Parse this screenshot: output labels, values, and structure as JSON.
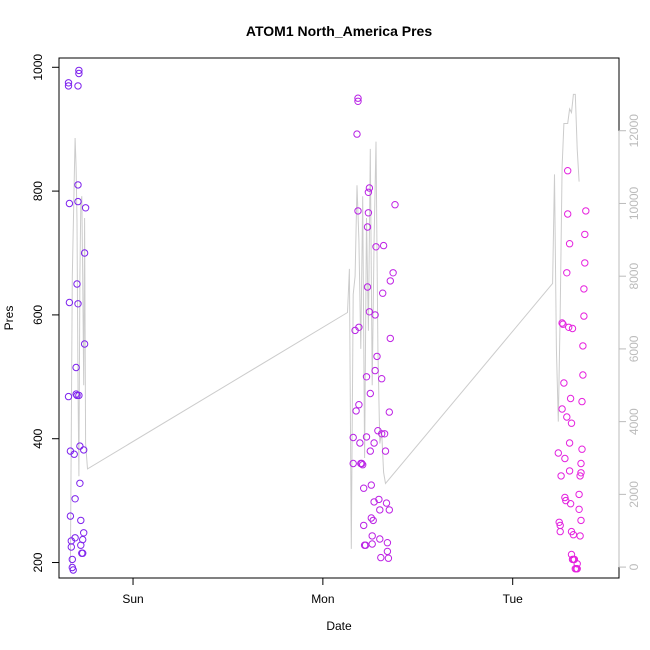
{
  "chart_data": {
    "type": "scatter",
    "title": "ATOM1 North_America Pres",
    "xlabel": "Date",
    "ylabel": "Pres",
    "x_ticks": [
      "Sun",
      "Mon",
      "Tue"
    ],
    "y_ticks": [
      "200",
      "400",
      "600",
      "800",
      "1000"
    ],
    "y_right_ticks": [
      "0",
      "2000",
      "4000",
      "6000",
      "8000",
      "10000",
      "12000"
    ],
    "ylim": [
      175,
      1015
    ],
    "y_right_lim": [
      -300,
      14000
    ],
    "x_range_days": [
      0.0,
      2.95
    ],
    "colors": {
      "point_start": "#7a22ee",
      "point_end": "#ee22dd",
      "right_line": "#cccccc",
      "right_axis_text": "#bbbbbb"
    },
    "points": [
      {
        "x": 0.05,
        "y": 975
      },
      {
        "x": 0.05,
        "y": 970
      },
      {
        "x": 0.055,
        "y": 780
      },
      {
        "x": 0.055,
        "y": 620
      },
      {
        "x": 0.05,
        "y": 468
      },
      {
        "x": 0.06,
        "y": 380
      },
      {
        "x": 0.06,
        "y": 275
      },
      {
        "x": 0.065,
        "y": 235
      },
      {
        "x": 0.065,
        "y": 225
      },
      {
        "x": 0.07,
        "y": 205
      },
      {
        "x": 0.07,
        "y": 192
      },
      {
        "x": 0.075,
        "y": 188
      },
      {
        "x": 0.08,
        "y": 375
      },
      {
        "x": 0.085,
        "y": 303
      },
      {
        "x": 0.085,
        "y": 240
      },
      {
        "x": 0.09,
        "y": 515
      },
      {
        "x": 0.09,
        "y": 472
      },
      {
        "x": 0.095,
        "y": 470
      },
      {
        "x": 0.095,
        "y": 650
      },
      {
        "x": 0.1,
        "y": 810
      },
      {
        "x": 0.1,
        "y": 970
      },
      {
        "x": 0.105,
        "y": 995
      },
      {
        "x": 0.105,
        "y": 990
      },
      {
        "x": 0.1,
        "y": 783
      },
      {
        "x": 0.1,
        "y": 618
      },
      {
        "x": 0.105,
        "y": 470
      },
      {
        "x": 0.11,
        "y": 388
      },
      {
        "x": 0.11,
        "y": 328
      },
      {
        "x": 0.115,
        "y": 268
      },
      {
        "x": 0.115,
        "y": 228
      },
      {
        "x": 0.12,
        "y": 215
      },
      {
        "x": 0.125,
        "y": 215
      },
      {
        "x": 0.125,
        "y": 237
      },
      {
        "x": 0.13,
        "y": 248
      },
      {
        "x": 0.13,
        "y": 382
      },
      {
        "x": 0.135,
        "y": 553
      },
      {
        "x": 0.135,
        "y": 700
      },
      {
        "x": 0.14,
        "y": 773
      },
      {
        "x": 1.55,
        "y": 402
      },
      {
        "x": 1.55,
        "y": 360
      },
      {
        "x": 1.56,
        "y": 575
      },
      {
        "x": 1.565,
        "y": 445
      },
      {
        "x": 1.57,
        "y": 892
      },
      {
        "x": 1.575,
        "y": 950
      },
      {
        "x": 1.575,
        "y": 945
      },
      {
        "x": 1.575,
        "y": 768
      },
      {
        "x": 1.58,
        "y": 580
      },
      {
        "x": 1.58,
        "y": 455
      },
      {
        "x": 1.585,
        "y": 393
      },
      {
        "x": 1.59,
        "y": 360
      },
      {
        "x": 1.595,
        "y": 360
      },
      {
        "x": 1.6,
        "y": 358
      },
      {
        "x": 1.605,
        "y": 320
      },
      {
        "x": 1.605,
        "y": 260
      },
      {
        "x": 1.61,
        "y": 228
      },
      {
        "x": 1.615,
        "y": 228
      },
      {
        "x": 1.62,
        "y": 403
      },
      {
        "x": 1.62,
        "y": 500
      },
      {
        "x": 1.625,
        "y": 645
      },
      {
        "x": 1.625,
        "y": 742
      },
      {
        "x": 1.63,
        "y": 765
      },
      {
        "x": 1.63,
        "y": 798
      },
      {
        "x": 1.635,
        "y": 805
      },
      {
        "x": 1.635,
        "y": 605
      },
      {
        "x": 1.64,
        "y": 473
      },
      {
        "x": 1.64,
        "y": 380
      },
      {
        "x": 1.645,
        "y": 325
      },
      {
        "x": 1.645,
        "y": 272
      },
      {
        "x": 1.65,
        "y": 243
      },
      {
        "x": 1.65,
        "y": 230
      },
      {
        "x": 1.655,
        "y": 268
      },
      {
        "x": 1.66,
        "y": 298
      },
      {
        "x": 1.66,
        "y": 393
      },
      {
        "x": 1.665,
        "y": 510
      },
      {
        "x": 1.665,
        "y": 600
      },
      {
        "x": 1.67,
        "y": 710
      },
      {
        "x": 1.675,
        "y": 533
      },
      {
        "x": 1.68,
        "y": 413
      },
      {
        "x": 1.685,
        "y": 302
      },
      {
        "x": 1.69,
        "y": 285
      },
      {
        "x": 1.69,
        "y": 238
      },
      {
        "x": 1.695,
        "y": 208
      },
      {
        "x": 1.7,
        "y": 408
      },
      {
        "x": 1.7,
        "y": 497
      },
      {
        "x": 1.705,
        "y": 635
      },
      {
        "x": 1.71,
        "y": 712
      },
      {
        "x": 1.715,
        "y": 408
      },
      {
        "x": 1.72,
        "y": 380
      },
      {
        "x": 1.725,
        "y": 296
      },
      {
        "x": 1.73,
        "y": 232
      },
      {
        "x": 1.73,
        "y": 218
      },
      {
        "x": 1.735,
        "y": 207
      },
      {
        "x": 1.74,
        "y": 285
      },
      {
        "x": 1.74,
        "y": 443
      },
      {
        "x": 1.745,
        "y": 562
      },
      {
        "x": 1.745,
        "y": 655
      },
      {
        "x": 1.76,
        "y": 668
      },
      {
        "x": 1.77,
        "y": 778
      },
      {
        "x": 2.63,
        "y": 377
      },
      {
        "x": 2.635,
        "y": 265
      },
      {
        "x": 2.64,
        "y": 260
      },
      {
        "x": 2.64,
        "y": 250
      },
      {
        "x": 2.645,
        "y": 340
      },
      {
        "x": 2.65,
        "y": 448
      },
      {
        "x": 2.65,
        "y": 587
      },
      {
        "x": 2.655,
        "y": 585
      },
      {
        "x": 2.66,
        "y": 490
      },
      {
        "x": 2.665,
        "y": 368
      },
      {
        "x": 2.665,
        "y": 305
      },
      {
        "x": 2.67,
        "y": 300
      },
      {
        "x": 2.675,
        "y": 435
      },
      {
        "x": 2.675,
        "y": 668
      },
      {
        "x": 2.68,
        "y": 763
      },
      {
        "x": 2.68,
        "y": 833
      },
      {
        "x": 2.685,
        "y": 580
      },
      {
        "x": 2.69,
        "y": 393
      },
      {
        "x": 2.69,
        "y": 348
      },
      {
        "x": 2.695,
        "y": 295
      },
      {
        "x": 2.7,
        "y": 250
      },
      {
        "x": 2.7,
        "y": 213
      },
      {
        "x": 2.705,
        "y": 205
      },
      {
        "x": 2.71,
        "y": 205
      },
      {
        "x": 2.715,
        "y": 205
      },
      {
        "x": 2.72,
        "y": 190
      },
      {
        "x": 2.725,
        "y": 190
      },
      {
        "x": 2.73,
        "y": 190
      },
      {
        "x": 2.69,
        "y": 715
      },
      {
        "x": 2.695,
        "y": 465
      },
      {
        "x": 2.7,
        "y": 425
      },
      {
        "x": 2.705,
        "y": 578
      },
      {
        "x": 2.71,
        "y": 245
      },
      {
        "x": 2.73,
        "y": 198
      },
      {
        "x": 2.74,
        "y": 286
      },
      {
        "x": 2.74,
        "y": 310
      },
      {
        "x": 2.745,
        "y": 340
      },
      {
        "x": 2.75,
        "y": 345
      },
      {
        "x": 2.75,
        "y": 360
      },
      {
        "x": 2.755,
        "y": 383
      },
      {
        "x": 2.755,
        "y": 460
      },
      {
        "x": 2.76,
        "y": 503
      },
      {
        "x": 2.76,
        "y": 550
      },
      {
        "x": 2.765,
        "y": 598
      },
      {
        "x": 2.765,
        "y": 642
      },
      {
        "x": 2.77,
        "y": 684
      },
      {
        "x": 2.77,
        "y": 730
      },
      {
        "x": 2.775,
        "y": 768
      },
      {
        "x": 2.745,
        "y": 243
      },
      {
        "x": 2.75,
        "y": 268
      }
    ],
    "right_series": [
      {
        "x": 0.06,
        "y": 0
      },
      {
        "x": 0.07,
        "y": 8000
      },
      {
        "x": 0.08,
        "y": 10600
      },
      {
        "x": 0.085,
        "y": 11800
      },
      {
        "x": 0.09,
        "y": 11000
      },
      {
        "x": 0.095,
        "y": 9500
      },
      {
        "x": 0.1,
        "y": 5000
      },
      {
        "x": 0.105,
        "y": 2500
      },
      {
        "x": 0.11,
        "y": 8000
      },
      {
        "x": 0.115,
        "y": 10000
      },
      {
        "x": 0.12,
        "y": 10200
      },
      {
        "x": 0.125,
        "y": 8000
      },
      {
        "x": 0.13,
        "y": 5000
      },
      {
        "x": 0.135,
        "y": 9600
      },
      {
        "x": 0.14,
        "y": 3400
      },
      {
        "x": 0.15,
        "y": 2700
      },
      {
        "x": 1.52,
        "y": 7000
      },
      {
        "x": 1.53,
        "y": 8200
      },
      {
        "x": 1.54,
        "y": 500
      },
      {
        "x": 1.55,
        "y": 7500
      },
      {
        "x": 1.56,
        "y": 8000
      },
      {
        "x": 1.57,
        "y": 10500
      },
      {
        "x": 1.58,
        "y": 9000
      },
      {
        "x": 1.59,
        "y": 6000
      },
      {
        "x": 1.6,
        "y": 10200
      },
      {
        "x": 1.61,
        "y": 3000
      },
      {
        "x": 1.62,
        "y": 9600
      },
      {
        "x": 1.63,
        "y": 6500
      },
      {
        "x": 1.64,
        "y": 11500
      },
      {
        "x": 1.65,
        "y": 5000
      },
      {
        "x": 1.66,
        "y": 9000
      },
      {
        "x": 1.67,
        "y": 11700
      },
      {
        "x": 1.68,
        "y": 6000
      },
      {
        "x": 1.69,
        "y": 3400
      },
      {
        "x": 1.7,
        "y": 3700
      },
      {
        "x": 1.71,
        "y": 2600
      },
      {
        "x": 1.72,
        "y": 2300
      },
      {
        "x": 2.6,
        "y": 7800
      },
      {
        "x": 2.61,
        "y": 10800
      },
      {
        "x": 2.62,
        "y": 6000
      },
      {
        "x": 2.63,
        "y": 4000
      },
      {
        "x": 2.64,
        "y": 7000
      },
      {
        "x": 2.65,
        "y": 11000
      },
      {
        "x": 2.66,
        "y": 12200
      },
      {
        "x": 2.67,
        "y": 12200
      },
      {
        "x": 2.68,
        "y": 12200
      },
      {
        "x": 2.69,
        "y": 12600
      },
      {
        "x": 2.7,
        "y": 12500
      },
      {
        "x": 2.71,
        "y": 13000
      },
      {
        "x": 2.72,
        "y": 13000
      },
      {
        "x": 2.73,
        "y": 11500
      },
      {
        "x": 2.74,
        "y": 10600
      }
    ]
  }
}
